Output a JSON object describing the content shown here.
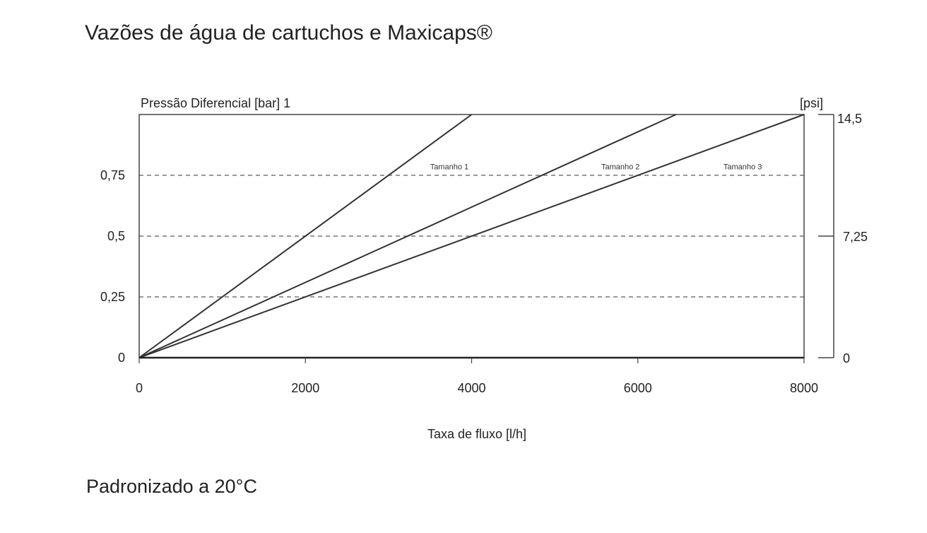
{
  "title": "Vazões de água de cartuchos e Maxicaps®",
  "footnote": "Padronizado a 20°C",
  "chart_data": {
    "type": "line",
    "ylabel": "Pressão Diferencial [bar] 1",
    "y2label": "[psi]",
    "xlabel": "Taxa de fluxo [l/h]",
    "xlim": [
      0,
      8000
    ],
    "ylim": [
      0,
      1
    ],
    "x_ticks": [
      0,
      2000,
      4000,
      6000,
      8000
    ],
    "x_tick_labels": [
      "0",
      "2000",
      "4000",
      "6000",
      "8000"
    ],
    "y_ticks": [
      0,
      0.25,
      0.5,
      0.75
    ],
    "y_tick_labels": [
      "0",
      "0,25",
      "0,5",
      "0,75"
    ],
    "y2_ticks": [
      0,
      7.25,
      14.5
    ],
    "y2_tick_labels": [
      "0",
      "7,25",
      "14,5"
    ],
    "y2lim": [
      0,
      14.5
    ],
    "grid": "dashed horizontal at 0.25, 0.5, 0.75",
    "series": [
      {
        "name": "Tamanho 1",
        "x": [
          0,
          4000
        ],
        "y": [
          0,
          1
        ],
        "label_at": [
          3500,
          0.775
        ]
      },
      {
        "name": "Tamanho 2",
        "x": [
          0,
          6460
        ],
        "y": [
          0,
          1
        ],
        "label_at": [
          5560,
          0.775
        ]
      },
      {
        "name": "Tamanho 3",
        "x": [
          0,
          8000
        ],
        "y": [
          0,
          1
        ],
        "label_at": [
          7030,
          0.775
        ]
      }
    ],
    "colors": {
      "line": "#333333",
      "grid": "#777777",
      "frame": "#444444"
    }
  }
}
